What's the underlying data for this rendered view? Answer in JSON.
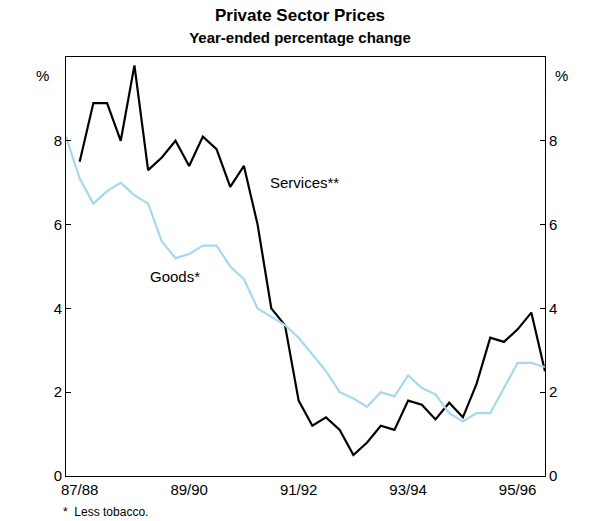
{
  "chart_data": {
    "type": "line",
    "title": "Private Sector Prices",
    "subtitle": "Year-ended percentage change",
    "ylabel": "%",
    "y2label": "%",
    "footnote": "*  Less tobacco.",
    "categories": [
      null,
      "87/88",
      null,
      null,
      null,
      null,
      null,
      null,
      null,
      "89/90",
      null,
      null,
      null,
      null,
      null,
      null,
      null,
      "91/92",
      null,
      null,
      null,
      null,
      null,
      null,
      null,
      "93/94",
      null,
      null,
      null,
      null,
      null,
      null,
      null,
      "95/96",
      null,
      null
    ],
    "series": [
      {
        "name": "Services**",
        "color": "#000000",
        "values": [
          null,
          7.5,
          8.9,
          8.9,
          8.0,
          9.8,
          7.3,
          7.6,
          8.0,
          7.4,
          8.1,
          7.8,
          6.9,
          7.4,
          6.0,
          4.0,
          3.6,
          1.8,
          1.2,
          1.4,
          1.1,
          0.5,
          0.8,
          1.2,
          1.1,
          1.8,
          1.7,
          1.35,
          1.75,
          1.4,
          2.2,
          3.3,
          3.2,
          3.5,
          3.9,
          2.5
        ]
      },
      {
        "name": "Goods*",
        "color": "#a6d8f0",
        "values": [
          8.1,
          7.1,
          6.5,
          6.8,
          7.0,
          6.7,
          6.5,
          5.6,
          5.2,
          5.3,
          5.5,
          5.5,
          5.0,
          4.7,
          4.0,
          3.8,
          3.6,
          3.3,
          2.9,
          2.5,
          2.0,
          1.85,
          1.65,
          2.0,
          1.9,
          2.4,
          2.1,
          1.95,
          1.5,
          1.3,
          1.5,
          1.5,
          2.1,
          2.7,
          2.7,
          2.6
        ]
      }
    ],
    "ylim": [
      0,
      10
    ],
    "yticks": [
      0,
      2,
      4,
      6,
      8
    ],
    "grid": false
  }
}
